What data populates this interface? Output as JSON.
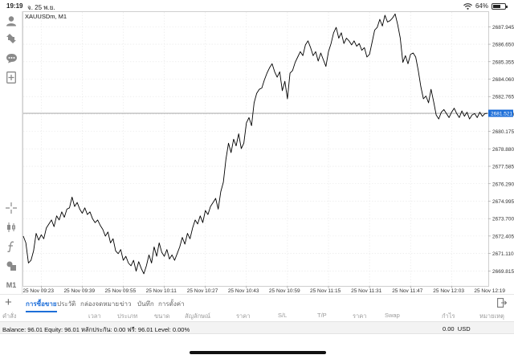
{
  "status_bar": {
    "time": "19:19",
    "date": "จ. 25 พ.ย.",
    "wifi_icon": "wifi-icon",
    "battery_text": "64%",
    "battery_level": 0.64
  },
  "toolbar": {
    "icons": [
      "account-icon",
      "trade-icon",
      "chat-icon",
      "new-order-icon",
      "crosshair-icon",
      "candles-icon",
      "indicators-icon",
      "objects-icon"
    ],
    "timeframe": "M1"
  },
  "chart": {
    "symbol": "XAUUSDm, M1",
    "current_price_label": "2681.521",
    "line_color": "#000000",
    "current_price_line_color": "#9e9e9e",
    "current_price_tag_color": "#1e6fd9"
  },
  "chart_data": {
    "type": "line",
    "title": "XAUUSDm, M1",
    "xlabel": "",
    "ylabel": "",
    "ylim": [
      2668.7,
      2689.1
    ],
    "y_ticks": [
      "2687.945",
      "2686.650",
      "2685.355",
      "2684.060",
      "2682.765",
      "2681.470",
      "2680.175",
      "2678.880",
      "2677.585",
      "2676.290",
      "2674.995",
      "2673.700",
      "2672.405",
      "2671.110",
      "2669.815"
    ],
    "y_tick_values": [
      2687.945,
      2686.65,
      2685.355,
      2684.06,
      2682.765,
      2681.47,
      2680.175,
      2678.88,
      2677.585,
      2676.29,
      2674.995,
      2673.7,
      2672.405,
      2671.11,
      2669.815
    ],
    "x_ticks": [
      "25 Nov 09:23",
      "25 Nov 09:39",
      "25 Nov 09:55",
      "25 Nov 10:11",
      "25 Nov 10:27",
      "25 Nov 10:43",
      "25 Nov 10:59",
      "25 Nov 11:15",
      "25 Nov 11:31",
      "25 Nov 11:47",
      "25 Nov 12:03",
      "25 Nov 12:19"
    ],
    "x_tick_minutes": [
      7,
      23,
      39,
      55,
      71,
      87,
      103,
      119,
      135,
      151,
      167,
      183
    ],
    "x_range_minutes": [
      0,
      181
    ],
    "grid": true,
    "current_price": 2681.521,
    "series": [
      {
        "minutes": [
          0,
          1,
          2,
          3,
          4,
          5,
          6,
          7,
          8,
          9,
          10,
          11,
          12,
          13,
          14,
          15,
          16,
          17,
          18,
          19,
          20,
          21,
          22,
          23,
          24,
          25,
          26,
          27,
          28,
          29,
          30,
          31,
          32,
          33,
          34,
          35,
          36,
          37,
          38,
          39,
          40,
          41,
          42,
          43,
          44,
          45,
          46,
          47,
          48,
          49,
          50,
          51,
          52,
          53,
          54,
          55,
          56,
          57,
          58,
          59,
          60,
          61,
          62,
          63,
          64,
          65,
          66,
          67,
          68,
          69,
          70,
          71,
          72,
          73,
          74,
          75,
          76,
          77,
          78,
          79,
          80,
          81,
          82,
          83,
          84,
          85,
          86,
          87,
          88,
          89,
          90,
          91,
          92,
          93,
          94,
          95,
          96,
          97,
          98,
          99,
          100,
          101,
          102,
          103,
          104,
          105,
          106,
          107,
          108,
          109,
          110,
          111,
          112,
          113,
          114,
          115,
          116,
          117,
          118,
          119,
          120,
          121,
          122,
          123,
          124,
          125,
          126,
          127,
          128,
          129,
          130,
          131,
          132,
          133,
          134,
          135,
          136,
          137,
          138,
          139,
          140,
          141,
          142,
          143,
          144,
          145,
          146,
          147,
          148,
          149,
          150,
          151,
          152,
          153,
          154,
          155,
          156,
          157,
          158,
          159,
          160,
          161,
          162,
          163,
          164,
          165,
          166,
          167,
          168,
          169,
          170,
          171,
          172,
          173,
          174,
          175,
          176,
          177,
          178,
          179,
          180,
          181
        ],
        "values": [
          2672.4,
          2671.9,
          2670.4,
          2670.6,
          2671.3,
          2672.6,
          2672.1,
          2672.5,
          2672.2,
          2673.0,
          2673.3,
          2673.6,
          2673.1,
          2673.9,
          2673.6,
          2674.2,
          2673.8,
          2674.4,
          2674.5,
          2675.3,
          2674.6,
          2674.9,
          2674.4,
          2674.1,
          2674.5,
          2674.0,
          2674.2,
          2673.7,
          2673.4,
          2673.6,
          2673.2,
          2672.9,
          2672.4,
          2672.7,
          2671.9,
          2672.2,
          2671.3,
          2671.1,
          2671.4,
          2670.6,
          2670.9,
          2670.4,
          2670.2,
          2670.6,
          2669.8,
          2670.5,
          2670.0,
          2669.6,
          2670.2,
          2671.0,
          2670.4,
          2671.6,
          2670.9,
          2671.9,
          2671.2,
          2670.9,
          2671.4,
          2670.7,
          2671.0,
          2670.6,
          2671.1,
          2671.6,
          2672.3,
          2671.8,
          2672.6,
          2672.2,
          2673.0,
          2673.6,
          2673.3,
          2673.9,
          2673.4,
          2674.3,
          2674.0,
          2674.6,
          2674.9,
          2675.2,
          2674.4,
          2675.7,
          2676.4,
          2678.1,
          2679.3,
          2678.6,
          2679.6,
          2679.1,
          2680.0,
          2678.9,
          2679.3,
          2680.8,
          2681.2,
          2680.6,
          2682.3,
          2683.0,
          2683.3,
          2683.4,
          2684.0,
          2684.5,
          2684.9,
          2685.2,
          2684.6,
          2684.2,
          2684.6,
          2683.2,
          2683.9,
          2682.6,
          2684.5,
          2684.7,
          2685.3,
          2685.7,
          2686.1,
          2685.8,
          2686.6,
          2686.9,
          2686.4,
          2685.8,
          2686.1,
          2685.4,
          2686.0,
          2685.5,
          2685.0,
          2686.1,
          2686.7,
          2687.5,
          2687.9,
          2687.1,
          2687.5,
          2686.7,
          2687.1,
          2686.9,
          2686.6,
          2686.9,
          2686.5,
          2686.7,
          2686.2,
          2686.4,
          2685.7,
          2685.9,
          2686.8,
          2687.7,
          2687.9,
          2688.5,
          2688.0,
          2688.8,
          2688.3,
          2688.4,
          2688.6,
          2688.9,
          2688.1,
          2687.1,
          2685.3,
          2685.8,
          2685.2,
          2685.9,
          2686.0,
          2685.7,
          2684.7,
          2683.5,
          2682.6,
          2682.8,
          2682.3,
          2683.3,
          2682.4,
          2681.4,
          2681.1,
          2681.6,
          2681.8,
          2681.5,
          2681.2,
          2681.6,
          2681.9,
          2681.5,
          2681.2,
          2681.7,
          2681.3,
          2681.6,
          2681.1,
          2681.4,
          2681.5,
          2681.2,
          2681.6,
          2681.3,
          2681.5,
          2681.521
        ]
      }
    ]
  },
  "bottom_tabs": {
    "add_icon": "plus-icon",
    "items": [
      "การซื้อขาย",
      "ประวัติ",
      "กล่องจดหมาย",
      "ข่าว",
      "บันทึก",
      "การตั้งค่า"
    ],
    "export_icon": "export-icon"
  },
  "columns": [
    "คำสั่ง",
    "เวลา",
    "ประเภท",
    "ขนาด",
    "สัญลักษณ์",
    "ราคา",
    "S/L",
    "T/P",
    "ราคา",
    "Swap",
    "กำไร",
    "หมายเหตุ"
  ],
  "balance_bar": {
    "text": "Balance: 96.01 Equity: 96.01 หลักประกัน: 0.00 ฟรี: 96.01 Level: 0.00%",
    "profit": "0.00",
    "currency": "USD"
  }
}
